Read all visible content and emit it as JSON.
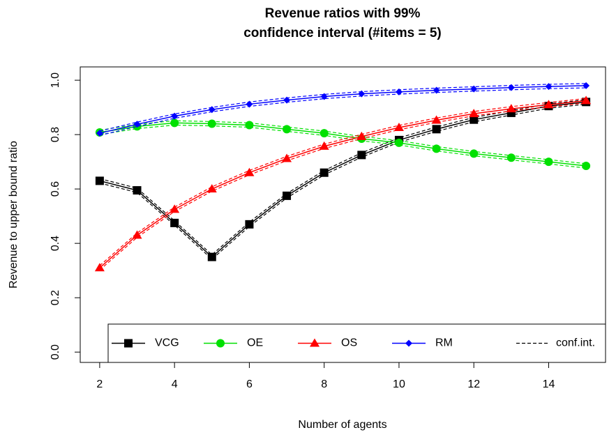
{
  "chart_data": {
    "type": "line",
    "title": [
      "Revenue ratios with 99%",
      "confidence interval (#items = 5)"
    ],
    "xlabel": "Number of agents",
    "ylabel": "Revenue to upper bound ratio",
    "x": [
      2,
      3,
      4,
      5,
      6,
      7,
      8,
      9,
      10,
      11,
      12,
      13,
      14,
      15
    ],
    "xlim": [
      1.48,
      15.52
    ],
    "xticks": [
      2,
      4,
      6,
      8,
      10,
      12,
      14
    ],
    "ylim": [
      -0.038,
      1.049
    ],
    "yticks": [
      {
        "value": 0,
        "label": "0.0"
      },
      0.2,
      0.4,
      0.6,
      0.8,
      {
        "value": 1,
        "label": "1.0"
      }
    ],
    "legend": "bottom-right",
    "ci_legend": "conf.int.",
    "series": [
      {
        "name": "VCG",
        "color": "#000000",
        "marker": "square",
        "values": [
          0.63,
          0.595,
          0.475,
          0.35,
          0.47,
          0.575,
          0.66,
          0.725,
          0.78,
          0.82,
          0.855,
          0.88,
          0.905,
          0.92
        ],
        "lower": [
          0.622,
          0.587,
          0.467,
          0.342,
          0.462,
          0.567,
          0.652,
          0.717,
          0.772,
          0.812,
          0.847,
          0.872,
          0.897,
          0.912
        ],
        "upper": [
          0.638,
          0.603,
          0.483,
          0.358,
          0.478,
          0.583,
          0.668,
          0.733,
          0.788,
          0.828,
          0.863,
          0.888,
          0.913,
          0.928
        ]
      },
      {
        "name": "OE",
        "color": "#00e000",
        "marker": "circle",
        "values": [
          0.808,
          0.83,
          0.843,
          0.84,
          0.835,
          0.82,
          0.805,
          0.785,
          0.77,
          0.748,
          0.73,
          0.715,
          0.7,
          0.685
        ],
        "lower": [
          0.8,
          0.822,
          0.835,
          0.832,
          0.827,
          0.812,
          0.797,
          0.777,
          0.762,
          0.74,
          0.722,
          0.707,
          0.692,
          0.677
        ],
        "upper": [
          0.816,
          0.838,
          0.851,
          0.848,
          0.843,
          0.828,
          0.813,
          0.793,
          0.778,
          0.756,
          0.738,
          0.723,
          0.708,
          0.693
        ]
      },
      {
        "name": "OS",
        "color": "#ff0000",
        "marker": "triangle",
        "values": [
          0.31,
          0.43,
          0.525,
          0.6,
          0.66,
          0.712,
          0.757,
          0.793,
          0.826,
          0.853,
          0.877,
          0.895,
          0.91,
          0.925
        ],
        "lower": [
          0.302,
          0.422,
          0.517,
          0.592,
          0.652,
          0.704,
          0.749,
          0.785,
          0.818,
          0.845,
          0.869,
          0.887,
          0.902,
          0.917
        ],
        "upper": [
          0.318,
          0.438,
          0.533,
          0.608,
          0.668,
          0.72,
          0.765,
          0.801,
          0.834,
          0.861,
          0.885,
          0.903,
          0.918,
          0.933
        ]
      },
      {
        "name": "RM",
        "color": "#0000ff",
        "marker": "diamond",
        "values": [
          0.805,
          0.838,
          0.868,
          0.892,
          0.912,
          0.927,
          0.94,
          0.95,
          0.957,
          0.963,
          0.968,
          0.973,
          0.977,
          0.98
        ],
        "lower": [
          0.797,
          0.83,
          0.86,
          0.884,
          0.904,
          0.919,
          0.932,
          0.942,
          0.949,
          0.955,
          0.96,
          0.965,
          0.969,
          0.972
        ],
        "upper": [
          0.813,
          0.846,
          0.876,
          0.9,
          0.92,
          0.935,
          0.948,
          0.958,
          0.965,
          0.971,
          0.976,
          0.981,
          0.985,
          0.988
        ]
      }
    ]
  }
}
